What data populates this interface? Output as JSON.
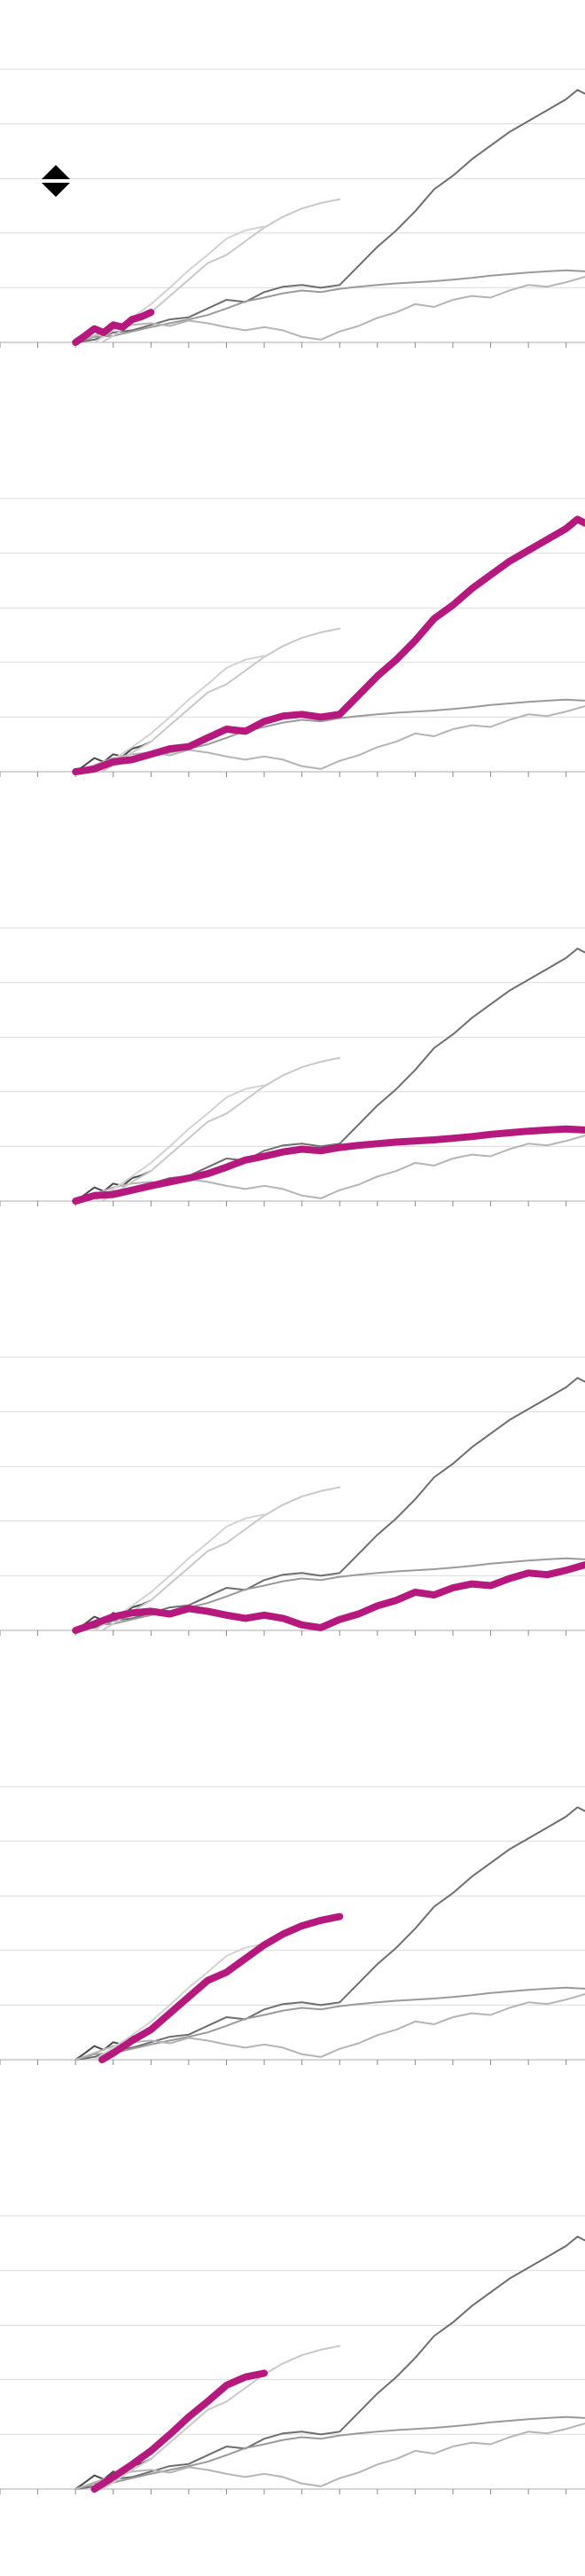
{
  "chart_data": {
    "type": "line",
    "title": "",
    "xlabel": "",
    "ylabel": "",
    "xlim": [
      -2,
      13.5
    ],
    "ylim": [
      0,
      5
    ],
    "grid": true,
    "tick_labels_visible": false,
    "x_ticks": [
      -2,
      -1,
      0,
      1,
      2,
      3,
      4,
      5,
      6,
      7,
      8,
      9,
      10,
      11,
      12,
      13
    ],
    "y_gridlines": [
      1,
      2,
      3,
      4,
      5
    ],
    "highlight_color": "#b5197d",
    "background_series_colors": [
      "#4a4a4a",
      "#6e6e6e",
      "#9a9a9a",
      "#b4b4b4",
      "#c8c8c8",
      "#d2d2d2"
    ],
    "series": [
      {
        "points": [
          [
            0,
            0
          ],
          [
            0.25,
            0.12
          ],
          [
            0.5,
            0.25
          ],
          [
            0.75,
            0.18
          ],
          [
            1,
            0.32
          ],
          [
            1.25,
            0.28
          ],
          [
            1.5,
            0.42
          ],
          [
            1.75,
            0.47
          ],
          [
            2,
            0.55
          ]
        ]
      },
      {
        "points": [
          [
            0,
            0
          ],
          [
            0.5,
            0.05
          ],
          [
            1,
            0.18
          ],
          [
            1.5,
            0.22
          ],
          [
            2,
            0.32
          ],
          [
            2.5,
            0.42
          ],
          [
            3,
            0.46
          ],
          [
            3.5,
            0.62
          ],
          [
            4,
            0.78
          ],
          [
            4.5,
            0.74
          ],
          [
            5,
            0.92
          ],
          [
            5.5,
            1.02
          ],
          [
            6,
            1.05
          ],
          [
            6.5,
            1.0
          ],
          [
            7,
            1.05
          ],
          [
            7.5,
            1.4
          ],
          [
            8,
            1.75
          ],
          [
            8.5,
            2.05
          ],
          [
            9,
            2.4
          ],
          [
            9.5,
            2.8
          ],
          [
            10,
            3.05
          ],
          [
            10.5,
            3.35
          ],
          [
            11,
            3.6
          ],
          [
            11.5,
            3.85
          ],
          [
            12,
            4.05
          ],
          [
            12.5,
            4.25
          ],
          [
            13,
            4.45
          ],
          [
            13.3,
            4.62
          ],
          [
            13.5,
            4.55
          ]
        ]
      },
      {
        "points": [
          [
            0,
            0
          ],
          [
            0.5,
            0.1
          ],
          [
            1,
            0.12
          ],
          [
            1.5,
            0.2
          ],
          [
            2,
            0.28
          ],
          [
            2.5,
            0.35
          ],
          [
            3,
            0.42
          ],
          [
            3.5,
            0.5
          ],
          [
            4,
            0.62
          ],
          [
            4.5,
            0.75
          ],
          [
            5,
            0.82
          ],
          [
            5.5,
            0.9
          ],
          [
            6,
            0.95
          ],
          [
            6.5,
            0.92
          ],
          [
            7,
            0.98
          ],
          [
            7.5,
            1.02
          ],
          [
            8,
            1.05
          ],
          [
            8.5,
            1.08
          ],
          [
            9,
            1.1
          ],
          [
            9.5,
            1.12
          ],
          [
            10,
            1.15
          ],
          [
            10.5,
            1.18
          ],
          [
            11,
            1.22
          ],
          [
            11.5,
            1.25
          ],
          [
            12,
            1.28
          ],
          [
            12.5,
            1.3
          ],
          [
            13,
            1.32
          ],
          [
            13.5,
            1.3
          ]
        ]
      },
      {
        "points": [
          [
            0,
            0
          ],
          [
            0.5,
            0.12
          ],
          [
            1,
            0.25
          ],
          [
            1.5,
            0.32
          ],
          [
            2,
            0.35
          ],
          [
            2.5,
            0.3
          ],
          [
            3,
            0.4
          ],
          [
            3.5,
            0.35
          ],
          [
            4,
            0.28
          ],
          [
            4.5,
            0.22
          ],
          [
            5,
            0.28
          ],
          [
            5.5,
            0.22
          ],
          [
            6,
            0.1
          ],
          [
            6.5,
            0.05
          ],
          [
            7,
            0.2
          ],
          [
            7.5,
            0.3
          ],
          [
            8,
            0.45
          ],
          [
            8.5,
            0.55
          ],
          [
            9,
            0.7
          ],
          [
            9.5,
            0.65
          ],
          [
            10,
            0.78
          ],
          [
            10.5,
            0.85
          ],
          [
            11,
            0.82
          ],
          [
            11.5,
            0.95
          ],
          [
            12,
            1.05
          ],
          [
            12.5,
            1.02
          ],
          [
            13,
            1.1
          ],
          [
            13.5,
            1.2
          ]
        ]
      },
      {
        "points": [
          [
            0.7,
            0
          ],
          [
            1,
            0.12
          ],
          [
            1.5,
            0.35
          ],
          [
            2,
            0.55
          ],
          [
            2.5,
            0.85
          ],
          [
            3,
            1.15
          ],
          [
            3.5,
            1.45
          ],
          [
            4,
            1.6
          ],
          [
            4.5,
            1.85
          ],
          [
            5,
            2.1
          ],
          [
            5.5,
            2.3
          ],
          [
            6,
            2.45
          ],
          [
            6.5,
            2.55
          ],
          [
            7,
            2.62
          ]
        ]
      },
      {
        "points": [
          [
            0.5,
            0
          ],
          [
            1,
            0.22
          ],
          [
            1.5,
            0.45
          ],
          [
            2,
            0.7
          ],
          [
            2.5,
            1.0
          ],
          [
            3,
            1.32
          ],
          [
            3.5,
            1.6
          ],
          [
            4,
            1.9
          ],
          [
            4.5,
            2.05
          ],
          [
            5,
            2.12
          ]
        ]
      }
    ]
  },
  "panels": [
    {
      "highlight": 0
    },
    {
      "highlight": 1
    },
    {
      "highlight": 2
    },
    {
      "highlight": 3
    },
    {
      "highlight": 4
    },
    {
      "highlight": 5
    }
  ]
}
